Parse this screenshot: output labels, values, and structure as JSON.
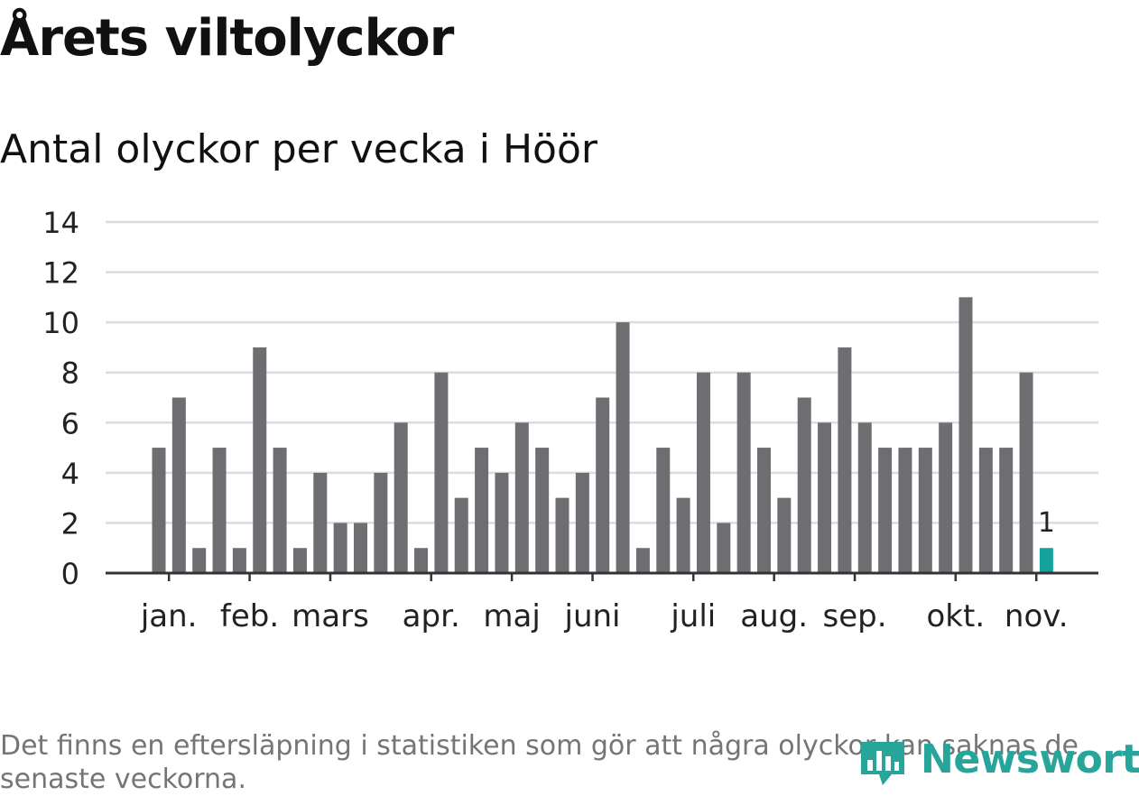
{
  "title": "Årets viltolyckor",
  "subtitle": "Antal olyckor per vecka i Höör",
  "footnote": "Det finns en eftersläpning i statistiken som gör att några olyckor kan saknas de senaste veckorna.",
  "logo": {
    "text": "Newsworthy"
  },
  "colors": {
    "bar": "#6e6d72",
    "highlight": "#14a39a",
    "grid": "#dcdcdc",
    "axis": "#333333",
    "logo": "#27a59a"
  },
  "chart_data": {
    "type": "bar",
    "title": "Antal olyckor per vecka i Höör",
    "xlabel": "",
    "ylabel": "",
    "ylim": [
      0,
      14
    ],
    "yticks": [
      0,
      2,
      4,
      6,
      8,
      10,
      12,
      14
    ],
    "weeks": [
      1,
      2,
      3,
      4,
      5,
      6,
      7,
      8,
      9,
      10,
      11,
      12,
      13,
      14,
      15,
      16,
      17,
      18,
      19,
      20,
      21,
      22,
      23,
      24,
      25,
      26,
      27,
      28,
      29,
      30,
      31,
      32,
      33,
      34,
      35,
      36,
      37,
      38,
      39,
      40,
      41,
      42,
      43,
      44,
      45
    ],
    "values": [
      5,
      7,
      1,
      5,
      1,
      9,
      5,
      1,
      4,
      2,
      2,
      4,
      6,
      1,
      8,
      3,
      5,
      4,
      6,
      5,
      3,
      4,
      7,
      10,
      1,
      5,
      3,
      8,
      2,
      8,
      5,
      3,
      7,
      6,
      9,
      6,
      5,
      5,
      5,
      6,
      11,
      5,
      5,
      8,
      1
    ],
    "highlight_index": 44,
    "highlight_label": "1",
    "month_labels": [
      {
        "label": "jan.",
        "at_week": 1.5
      },
      {
        "label": "feb.",
        "at_week": 5.5
      },
      {
        "label": "mars",
        "at_week": 9.5
      },
      {
        "label": "apr.",
        "at_week": 14.5
      },
      {
        "label": "maj",
        "at_week": 18.5
      },
      {
        "label": "juni",
        "at_week": 22.5
      },
      {
        "label": "juli",
        "at_week": 27.5
      },
      {
        "label": "aug.",
        "at_week": 31.5
      },
      {
        "label": "sep.",
        "at_week": 35.5
      },
      {
        "label": "okt.",
        "at_week": 40.5
      },
      {
        "label": "nov.",
        "at_week": 44.5
      }
    ]
  }
}
